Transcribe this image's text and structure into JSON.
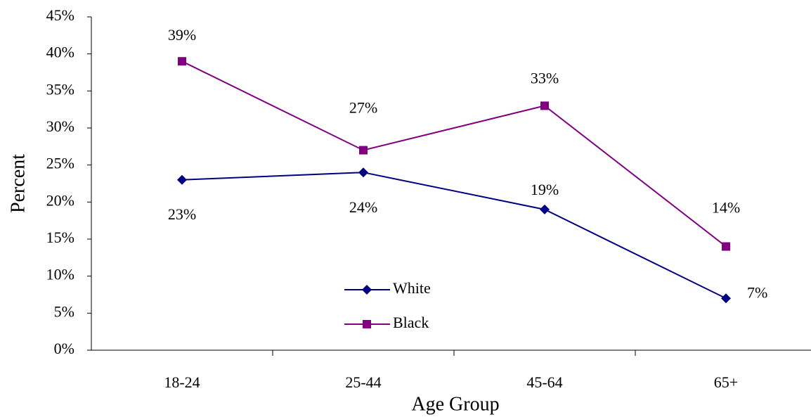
{
  "chart_data": {
    "type": "line",
    "x_label": "Age Group",
    "y_label": "Percent",
    "categories": [
      "18-24",
      "25-44",
      "45-64",
      "65+"
    ],
    "series": [
      {
        "name": "White",
        "color": "#000080",
        "marker": "diamond",
        "values": [
          23,
          24,
          19,
          7
        ],
        "value_labels": [
          "23%",
          "24%",
          "19%",
          "7%"
        ]
      },
      {
        "name": "Black",
        "color": "#800080",
        "marker": "square",
        "values": [
          39,
          27,
          33,
          14
        ],
        "value_labels": [
          "39%",
          "27%",
          "33%",
          "14%"
        ]
      }
    ],
    "ylim": [
      0,
      45
    ],
    "yticks": [
      {
        "value": 0,
        "label": "0%"
      },
      {
        "value": 5,
        "label": "5%"
      },
      {
        "value": 10,
        "label": "10%"
      },
      {
        "value": 15,
        "label": "15%"
      },
      {
        "value": 20,
        "label": "20%"
      },
      {
        "value": 25,
        "label": "25%"
      },
      {
        "value": 30,
        "label": "30%"
      },
      {
        "value": 35,
        "label": "35%"
      },
      {
        "value": 40,
        "label": "40%"
      },
      {
        "value": 45,
        "label": "45%"
      }
    ],
    "grid": false,
    "legend": "center"
  }
}
